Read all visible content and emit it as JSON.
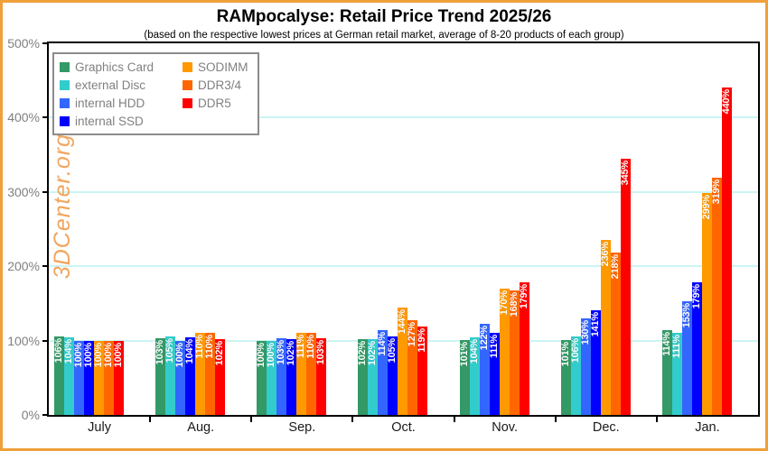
{
  "frame": {
    "border_color": "#EFA03A",
    "background": "#FFFFFF"
  },
  "header": {
    "title": "RAMpocalyse: Retail Price Trend 2025/26",
    "subtitle": "(based on the respective lowest prices at German retail market, average of 8-20 products of each group)"
  },
  "watermark": {
    "text": "3DCenter.org",
    "color": "#F2A45C"
  },
  "chart_data": {
    "type": "bar",
    "title": "RAMpocalyse: Retail Price Trend 2025/26",
    "subtitle": "(based on the respective lowest prices at German retail market, average of 8-20 products of each group)",
    "categories": [
      "July",
      "Aug.",
      "Sep.",
      "Oct.",
      "Nov.",
      "Dec.",
      "Jan."
    ],
    "series": [
      {
        "name": "Graphics Card",
        "color": "#339966",
        "values": [
          106,
          103,
          100,
          102,
          101,
          101,
          114
        ]
      },
      {
        "name": "external Disc",
        "color": "#33CCCC",
        "values": [
          104,
          105,
          100,
          102,
          104,
          106,
          111
        ]
      },
      {
        "name": "internal HDD",
        "color": "#3366FF",
        "values": [
          100,
          100,
          103,
          114,
          122,
          130,
          153
        ]
      },
      {
        "name": "internal SSD",
        "color": "#0000FF",
        "values": [
          100,
          104,
          102,
          105,
          111,
          141,
          179
        ]
      },
      {
        "name": "SODIMM",
        "color": "#FF9900",
        "values": [
          100,
          110,
          111,
          144,
          170,
          236,
          299
        ]
      },
      {
        "name": "DDR3/4",
        "color": "#FF6600",
        "values": [
          100,
          110,
          110,
          127,
          168,
          218,
          319
        ]
      },
      {
        "name": "DDR5",
        "color": "#FF0000",
        "values": [
          100,
          102,
          103,
          119,
          179,
          345,
          440
        ]
      }
    ],
    "value_suffix": "%",
    "bar_label_color": "#FFFFFF",
    "xlabel": "",
    "ylabel": "",
    "ylim": [
      0,
      500
    ],
    "yticks": [
      0,
      100,
      200,
      300,
      400,
      500
    ],
    "ytick_suffix": "%",
    "grid": true,
    "gridline_color": "#CCF4F4",
    "legend_position": "top-left",
    "legend_columns": [
      4,
      3
    ],
    "legend_text_color": "#808080"
  }
}
